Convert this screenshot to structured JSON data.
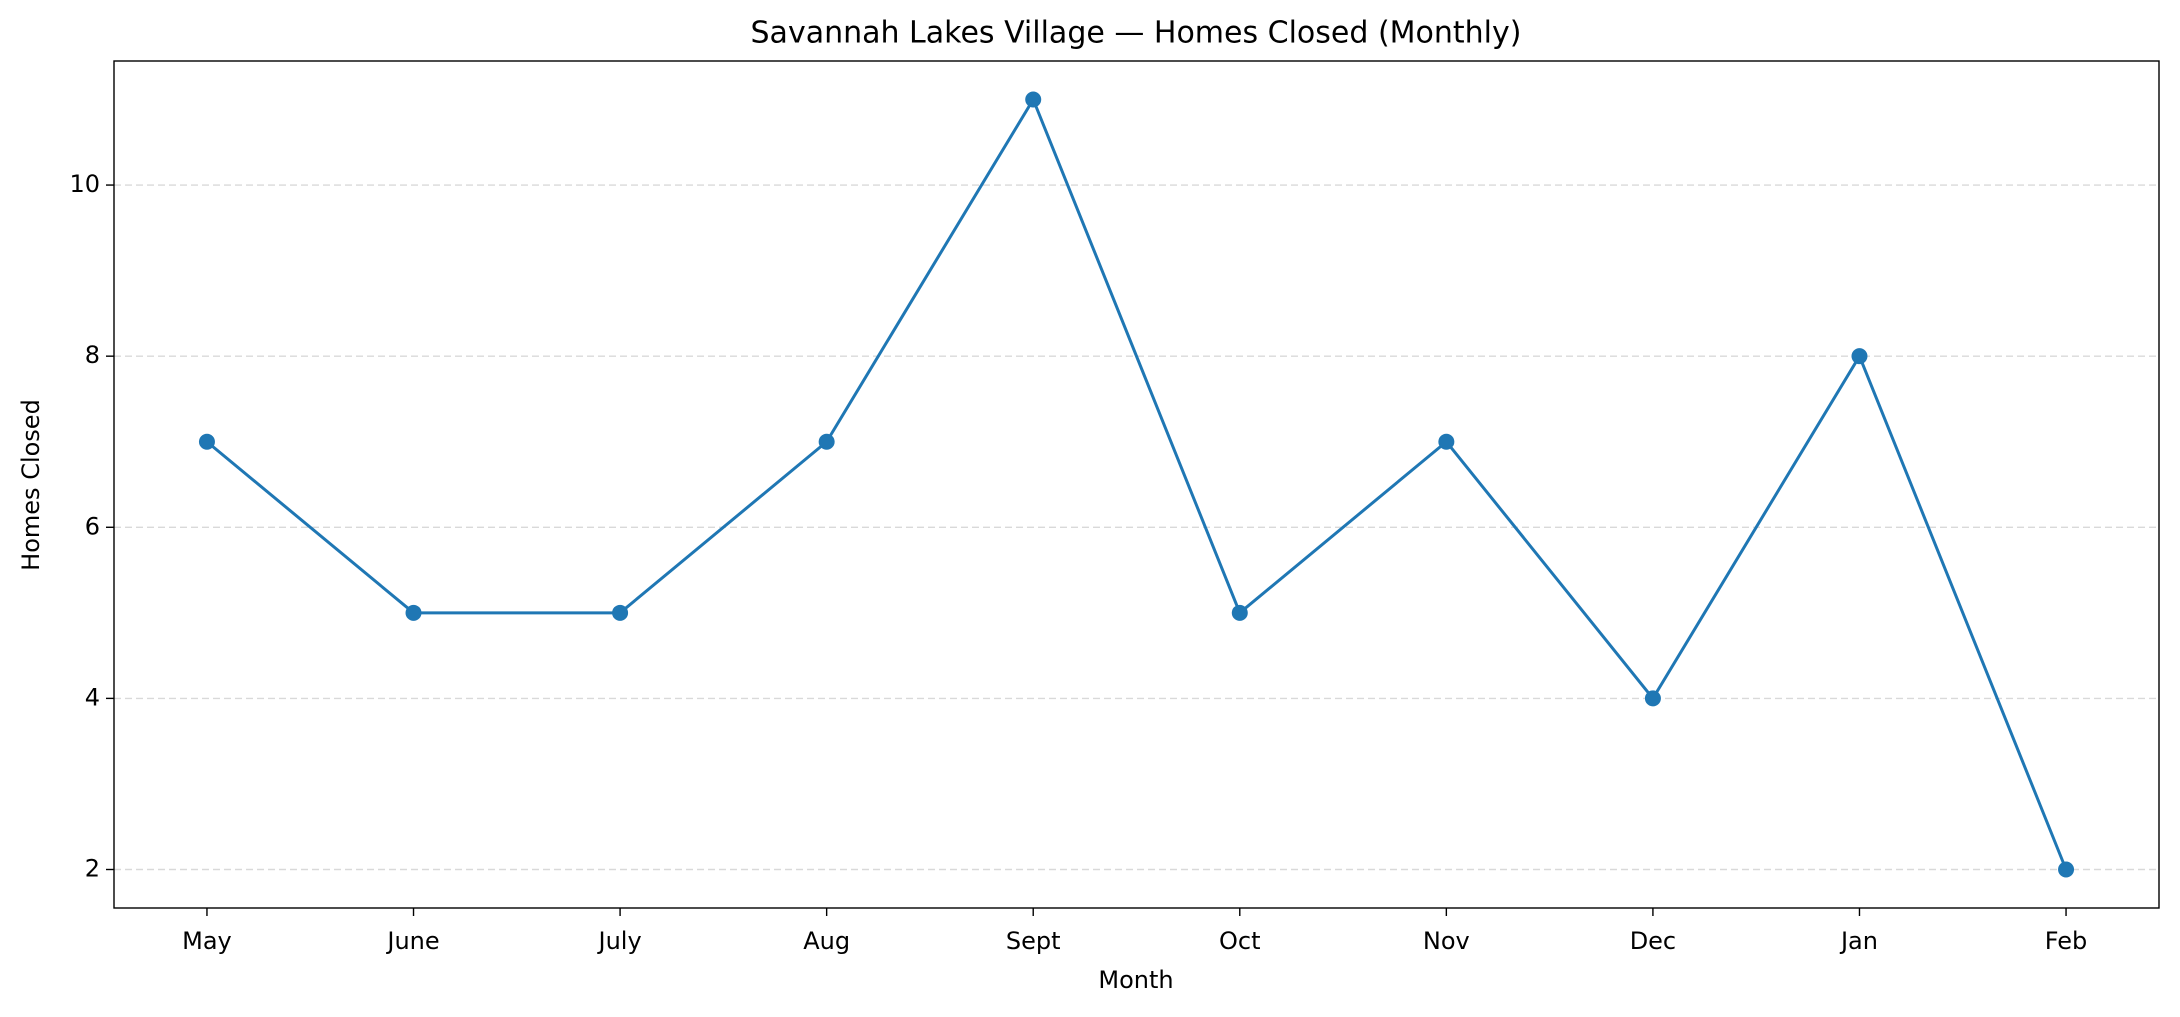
{
  "chart_data": {
    "type": "line",
    "title": "Savannah Lakes Village — Homes Closed (Monthly)",
    "x_label": "Month",
    "y_label": "Homes Closed",
    "categories": [
      "May",
      "June",
      "July",
      "Aug",
      "Sept",
      "Oct",
      "Nov",
      "Dec",
      "Jan",
      "Feb"
    ],
    "series": [
      {
        "name": "Homes Closed",
        "color": "#1f77b4",
        "values": [
          7,
          5,
          5,
          7,
          11,
          5,
          7,
          4,
          8,
          2
        ]
      }
    ],
    "ylim": [
      1.55,
      11.45
    ],
    "yticks": [
      2,
      4,
      6,
      8,
      10
    ],
    "grid": true
  }
}
